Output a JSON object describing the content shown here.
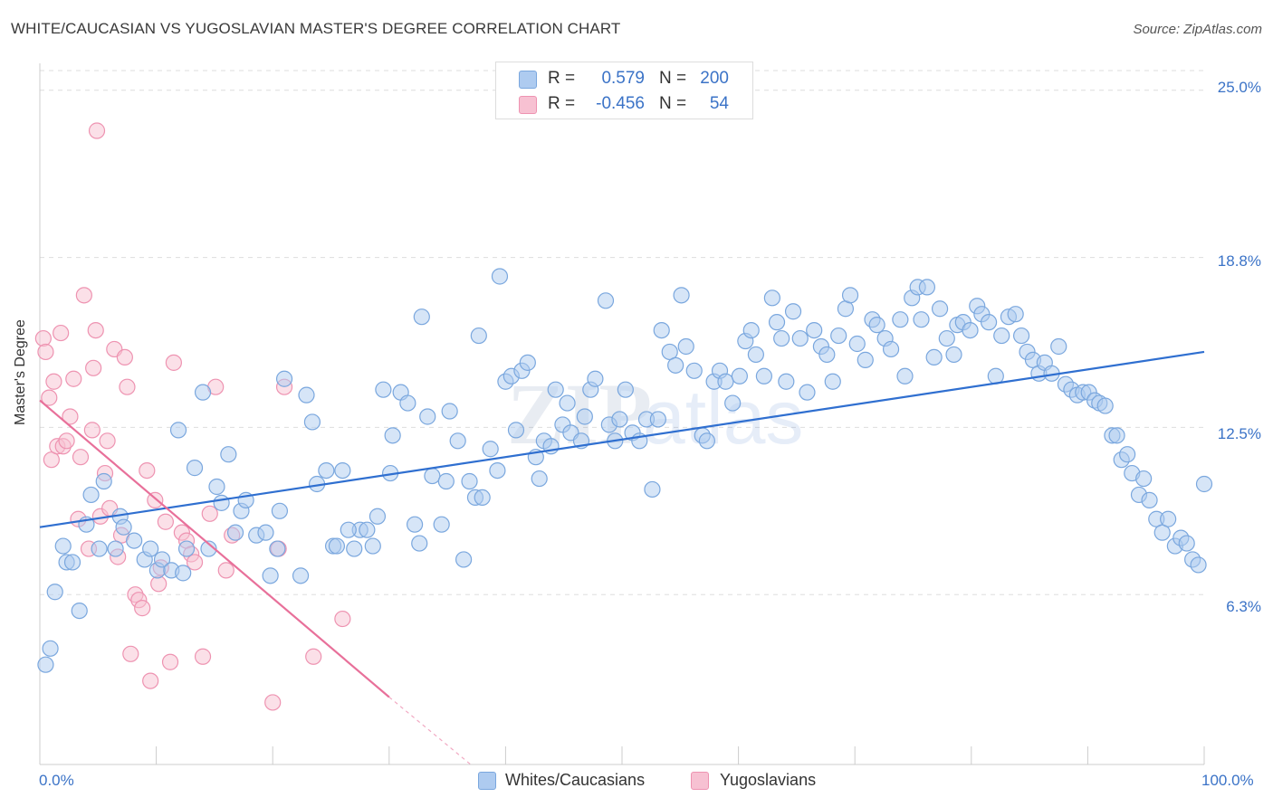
{
  "header": {
    "title": "WHITE/CAUCASIAN VS YUGOSLAVIAN MASTER'S DEGREE CORRELATION CHART",
    "source": "Source: ZipAtlas.com"
  },
  "legend_top": {
    "rows": [
      {
        "r_label": "R =",
        "r_value": "0.579",
        "n_label": "N =",
        "n_value": "200"
      },
      {
        "r_label": "R =",
        "r_value": "-0.456",
        "n_label": "N =",
        "n_value": "54"
      }
    ]
  },
  "legend_bottom": {
    "items": [
      "Whites/Caucasians",
      "Yugoslavians"
    ]
  },
  "watermark": {
    "zip": "ZIP",
    "atlas": "atlas"
  },
  "colors": {
    "blue_fill": "#aecbf0",
    "blue_stroke": "#7aa7de",
    "blue_line": "#2f6fd0",
    "pink_fill": "#f7c1d2",
    "pink_stroke": "#ee93b1",
    "pink_line": "#e8709a",
    "tick_text": "#3b73c7",
    "grid": "#dddddd"
  },
  "chart_data": {
    "type": "scatter",
    "title": "WHITE/CAUCASIAN VS YUGOSLAVIAN MASTER'S DEGREE CORRELATION CHART",
    "xlabel": "",
    "ylabel": "Master's Degree",
    "xlim": [
      0,
      100
    ],
    "ylim": [
      0,
      26
    ],
    "x_tick_labels": [
      "0.0%",
      "100.0%"
    ],
    "y_ticks": [
      6.3,
      12.5,
      18.8,
      25.0
    ],
    "y_tick_labels": [
      "6.3%",
      "12.5%",
      "18.8%",
      "25.0%"
    ],
    "grid": true,
    "legend": "bottom-center",
    "series": [
      {
        "name": "Whites/Caucasians",
        "r": 0.579,
        "n": 200,
        "trend": {
          "x": [
            0,
            100
          ],
          "y": [
            8.8,
            15.3
          ]
        },
        "points": [
          [
            0.5,
            3.7
          ],
          [
            0.9,
            4.3
          ],
          [
            1.3,
            6.4
          ],
          [
            2.0,
            8.1
          ],
          [
            2.3,
            7.5
          ],
          [
            2.8,
            7.5
          ],
          [
            3.4,
            5.7
          ],
          [
            4.0,
            8.9
          ],
          [
            4.4,
            10.0
          ],
          [
            5.1,
            8.0
          ],
          [
            5.5,
            10.5
          ],
          [
            6.5,
            8.0
          ],
          [
            6.9,
            9.2
          ],
          [
            7.2,
            8.8
          ],
          [
            8.1,
            8.3
          ],
          [
            9.0,
            7.6
          ],
          [
            9.5,
            8.0
          ],
          [
            10.1,
            7.2
          ],
          [
            10.5,
            7.6
          ],
          [
            11.3,
            7.2
          ],
          [
            11.9,
            12.4
          ],
          [
            12.3,
            7.1
          ],
          [
            12.6,
            8.0
          ],
          [
            13.3,
            11.0
          ],
          [
            14.0,
            13.8
          ],
          [
            14.5,
            8.0
          ],
          [
            15.2,
            10.3
          ],
          [
            15.6,
            9.7
          ],
          [
            16.2,
            11.5
          ],
          [
            16.8,
            8.6
          ],
          [
            17.3,
            9.4
          ],
          [
            17.7,
            9.8
          ],
          [
            18.6,
            8.5
          ],
          [
            19.4,
            8.6
          ],
          [
            19.8,
            7.0
          ],
          [
            20.4,
            8.0
          ],
          [
            21.0,
            14.3
          ],
          [
            22.4,
            7.0
          ],
          [
            22.9,
            13.7
          ],
          [
            23.4,
            12.7
          ],
          [
            23.8,
            10.4
          ],
          [
            24.6,
            10.9
          ],
          [
            25.2,
            8.1
          ],
          [
            25.5,
            8.1
          ],
          [
            26.0,
            10.9
          ],
          [
            27.0,
            8.0
          ],
          [
            27.5,
            8.7
          ],
          [
            28.1,
            8.7
          ],
          [
            28.6,
            8.1
          ],
          [
            29.0,
            9.2
          ],
          [
            29.5,
            13.9
          ],
          [
            30.1,
            10.8
          ],
          [
            30.3,
            12.2
          ],
          [
            31.0,
            13.8
          ],
          [
            31.6,
            13.4
          ],
          [
            32.2,
            8.9
          ],
          [
            32.6,
            8.2
          ],
          [
            32.8,
            16.6
          ],
          [
            33.3,
            12.9
          ],
          [
            33.7,
            10.7
          ],
          [
            34.5,
            8.9
          ],
          [
            34.9,
            10.5
          ],
          [
            35.2,
            13.1
          ],
          [
            35.9,
            12.0
          ],
          [
            36.4,
            7.6
          ],
          [
            36.9,
            10.5
          ],
          [
            37.4,
            9.9
          ],
          [
            37.7,
            15.9
          ],
          [
            38.0,
            9.9
          ],
          [
            38.7,
            11.7
          ],
          [
            39.3,
            10.9
          ],
          [
            39.5,
            18.1
          ],
          [
            40.0,
            14.2
          ],
          [
            40.5,
            14.4
          ],
          [
            40.9,
            12.4
          ],
          [
            41.4,
            14.6
          ],
          [
            41.9,
            14.9
          ],
          [
            42.6,
            11.4
          ],
          [
            42.9,
            10.6
          ],
          [
            43.3,
            12.0
          ],
          [
            43.9,
            11.8
          ],
          [
            44.3,
            13.9
          ],
          [
            44.9,
            12.6
          ],
          [
            45.3,
            13.4
          ],
          [
            45.6,
            12.3
          ],
          [
            46.5,
            12.0
          ],
          [
            46.8,
            12.9
          ],
          [
            47.3,
            13.9
          ],
          [
            47.7,
            14.3
          ],
          [
            48.6,
            17.2
          ],
          [
            48.9,
            12.6
          ],
          [
            49.4,
            12.0
          ],
          [
            49.8,
            12.8
          ],
          [
            50.3,
            13.9
          ],
          [
            50.9,
            12.3
          ],
          [
            51.5,
            12.0
          ],
          [
            52.1,
            12.8
          ],
          [
            52.6,
            10.2
          ],
          [
            53.1,
            12.8
          ],
          [
            53.4,
            16.1
          ],
          [
            54.1,
            15.3
          ],
          [
            54.6,
            14.8
          ],
          [
            55.1,
            17.4
          ],
          [
            55.5,
            15.5
          ],
          [
            56.2,
            14.6
          ],
          [
            56.9,
            12.2
          ],
          [
            57.3,
            12.0
          ],
          [
            57.9,
            14.2
          ],
          [
            58.4,
            14.6
          ],
          [
            58.9,
            14.2
          ],
          [
            59.5,
            13.4
          ],
          [
            60.1,
            14.4
          ],
          [
            60.6,
            15.7
          ],
          [
            61.1,
            16.1
          ],
          [
            61.5,
            15.2
          ],
          [
            62.2,
            14.4
          ],
          [
            62.9,
            17.3
          ],
          [
            63.3,
            16.4
          ],
          [
            63.7,
            15.8
          ],
          [
            64.1,
            14.2
          ],
          [
            64.7,
            16.8
          ],
          [
            65.3,
            15.8
          ],
          [
            65.9,
            13.8
          ],
          [
            66.5,
            16.1
          ],
          [
            67.1,
            15.5
          ],
          [
            67.6,
            15.2
          ],
          [
            68.1,
            14.2
          ],
          [
            68.6,
            15.9
          ],
          [
            69.2,
            16.9
          ],
          [
            69.6,
            17.4
          ],
          [
            70.2,
            15.6
          ],
          [
            70.9,
            15.0
          ],
          [
            71.5,
            16.5
          ],
          [
            71.9,
            16.3
          ],
          [
            72.6,
            15.8
          ],
          [
            73.1,
            15.4
          ],
          [
            73.9,
            16.5
          ],
          [
            74.3,
            14.4
          ],
          [
            74.9,
            17.3
          ],
          [
            75.4,
            17.7
          ],
          [
            75.7,
            16.5
          ],
          [
            76.2,
            17.7
          ],
          [
            76.8,
            15.1
          ],
          [
            77.3,
            16.9
          ],
          [
            77.9,
            15.8
          ],
          [
            78.5,
            15.2
          ],
          [
            78.8,
            16.3
          ],
          [
            79.3,
            16.4
          ],
          [
            79.9,
            16.1
          ],
          [
            80.5,
            17.0
          ],
          [
            80.9,
            16.7
          ],
          [
            81.5,
            16.4
          ],
          [
            82.1,
            14.4
          ],
          [
            82.6,
            15.9
          ],
          [
            83.2,
            16.6
          ],
          [
            83.8,
            16.7
          ],
          [
            84.3,
            15.9
          ],
          [
            84.8,
            15.3
          ],
          [
            85.3,
            15.0
          ],
          [
            85.8,
            14.5
          ],
          [
            86.3,
            14.9
          ],
          [
            86.9,
            14.5
          ],
          [
            87.5,
            15.5
          ],
          [
            88.1,
            14.1
          ],
          [
            88.6,
            13.9
          ],
          [
            89.1,
            13.7
          ],
          [
            89.6,
            13.8
          ],
          [
            90.1,
            13.8
          ],
          [
            90.6,
            13.5
          ],
          [
            91.0,
            13.4
          ],
          [
            91.5,
            13.3
          ],
          [
            92.1,
            12.2
          ],
          [
            92.5,
            12.2
          ],
          [
            92.9,
            11.3
          ],
          [
            93.4,
            11.5
          ],
          [
            93.8,
            10.8
          ],
          [
            94.4,
            10.0
          ],
          [
            94.8,
            10.6
          ],
          [
            95.3,
            9.8
          ],
          [
            95.9,
            9.1
          ],
          [
            96.4,
            8.6
          ],
          [
            96.9,
            9.1
          ],
          [
            97.5,
            8.1
          ],
          [
            98.0,
            8.4
          ],
          [
            98.5,
            8.2
          ],
          [
            99.0,
            7.6
          ],
          [
            99.5,
            7.4
          ],
          [
            100.0,
            10.4
          ],
          [
            20.6,
            9.4
          ],
          [
            26.5,
            8.7
          ]
        ]
      },
      {
        "name": "Yugoslavians",
        "r": -0.456,
        "n": 54,
        "trend": {
          "x": [
            0,
            30
          ],
          "y": [
            13.5,
            2.5
          ]
        },
        "trend_dashed": {
          "x": [
            30,
            37
          ],
          "y": [
            2.5,
            0
          ]
        },
        "points": [
          [
            0.3,
            15.8
          ],
          [
            0.5,
            15.3
          ],
          [
            0.8,
            13.6
          ],
          [
            1.0,
            11.3
          ],
          [
            1.2,
            14.2
          ],
          [
            1.5,
            11.8
          ],
          [
            1.8,
            16.0
          ],
          [
            2.0,
            11.8
          ],
          [
            2.3,
            12.0
          ],
          [
            2.6,
            12.9
          ],
          [
            2.9,
            14.3
          ],
          [
            3.3,
            9.1
          ],
          [
            3.5,
            11.4
          ],
          [
            3.8,
            17.4
          ],
          [
            4.2,
            8.0
          ],
          [
            4.5,
            12.4
          ],
          [
            4.6,
            14.7
          ],
          [
            4.8,
            16.1
          ],
          [
            5.2,
            9.2
          ],
          [
            5.6,
            10.8
          ],
          [
            5.8,
            12.0
          ],
          [
            6.0,
            9.5
          ],
          [
            6.4,
            15.4
          ],
          [
            6.7,
            7.7
          ],
          [
            7.0,
            8.5
          ],
          [
            7.3,
            15.1
          ],
          [
            7.5,
            14.0
          ],
          [
            7.8,
            4.1
          ],
          [
            8.2,
            6.3
          ],
          [
            8.5,
            6.1
          ],
          [
            8.8,
            5.8
          ],
          [
            9.2,
            10.9
          ],
          [
            9.5,
            3.1
          ],
          [
            9.9,
            9.8
          ],
          [
            10.2,
            6.7
          ],
          [
            10.4,
            7.3
          ],
          [
            10.8,
            9.0
          ],
          [
            11.2,
            3.8
          ],
          [
            11.5,
            14.9
          ],
          [
            12.2,
            8.6
          ],
          [
            12.6,
            8.3
          ],
          [
            13.0,
            7.8
          ],
          [
            13.3,
            7.5
          ],
          [
            14.0,
            4.0
          ],
          [
            14.6,
            9.3
          ],
          [
            15.1,
            14.0
          ],
          [
            16.0,
            7.2
          ],
          [
            16.5,
            8.5
          ],
          [
            20.0,
            2.3
          ],
          [
            20.5,
            8.0
          ],
          [
            21.0,
            14.0
          ],
          [
            23.5,
            4.0
          ],
          [
            26.0,
            5.4
          ],
          [
            4.9,
            23.5
          ]
        ]
      }
    ]
  }
}
